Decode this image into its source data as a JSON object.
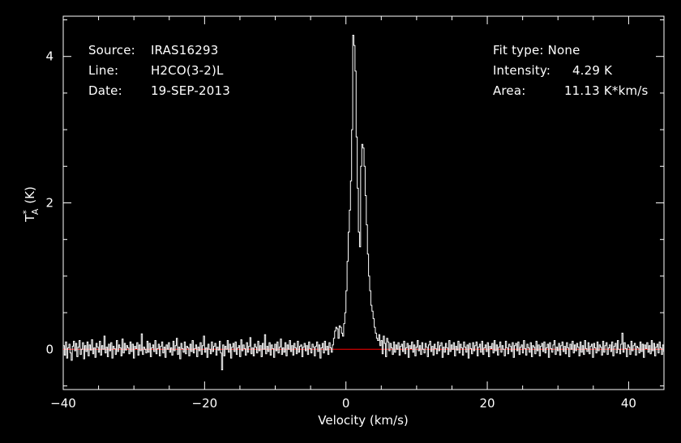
{
  "header": {
    "left": [
      {
        "label": "Source:",
        "value": "IRAS16293"
      },
      {
        "label": "Line:",
        "value": "H2CO(3-2)L"
      },
      {
        "label": "Date:",
        "value": "19-SEP-2013"
      }
    ],
    "right": [
      {
        "label": "Fit type:",
        "value": "None"
      },
      {
        "label": "Intensity:",
        "value": "4.29 K"
      },
      {
        "label": "Area:",
        "value": "11.13 K*km/s"
      }
    ]
  },
  "colors": {
    "background": "#000000",
    "spectrum": "#ffffff",
    "baseline": "#ff0000",
    "axes": "#ffffff"
  },
  "chart_data": {
    "type": "line",
    "step": true,
    "xlabel": "Velocity (km/s)",
    "ylabel": "T",
    "ylabel_sup": "*",
    "ylabel_sub": "A",
    "ylabel_unit": "(K)",
    "xlim": [
      -40,
      45
    ],
    "ylim": [
      -0.55,
      4.55
    ],
    "xticks": [
      -40,
      -20,
      0,
      20,
      40
    ],
    "yticks": [
      0,
      2,
      4
    ],
    "baseline": 0,
    "series": [
      {
        "x_start": -40,
        "x_step": 0.16,
        "y": [
          0.05,
          -0.08,
          0.1,
          -0.12,
          0.02,
          0.07,
          -0.05,
          -0.15,
          0.04,
          0.11,
          -0.02,
          0.08,
          -0.1,
          0.03,
          0.12,
          -0.07,
          0.0,
          0.09,
          -0.13,
          0.05,
          -0.03,
          0.1,
          -0.09,
          0.06,
          -0.01,
          0.13,
          -0.06,
          0.02,
          -0.11,
          0.08,
          0.03,
          -0.04,
          0.11,
          -0.08,
          0.05,
          0.0,
          0.18,
          -0.05,
          0.03,
          -0.1,
          0.07,
          -0.02,
          0.09,
          -0.12,
          0.04,
          0.01,
          -0.07,
          0.12,
          -0.03,
          0.06,
          0.02,
          -0.09,
          0.14,
          -0.05,
          0.08,
          -0.01,
          0.05,
          0.02,
          -0.06,
          0.1,
          -0.03,
          0.07,
          -0.12,
          0.04,
          0.01,
          0.09,
          -0.08,
          0.06,
          -0.02,
          0.21,
          -0.07,
          0.03,
          0.0,
          -0.05,
          0.11,
          -0.04,
          0.08,
          -0.1,
          0.02,
          0.06,
          -0.03,
          0.12,
          -0.06,
          0.01,
          0.07,
          -0.09,
          0.04,
          0.1,
          -0.05,
          0.03,
          -0.11,
          0.06,
          0.0,
          0.09,
          -0.04,
          0.02,
          -0.08,
          0.11,
          -0.02,
          0.05,
          0.15,
          -0.07,
          0.03,
          -0.13,
          0.08,
          0.01,
          -0.04,
          0.1,
          -0.06,
          0.04,
          0.02,
          -0.09,
          0.07,
          -0.03,
          0.12,
          -0.05,
          0.01,
          0.06,
          -0.1,
          0.03,
          -0.02,
          0.09,
          -0.07,
          0.05,
          0.18,
          -0.04,
          0.02,
          -0.11,
          0.07,
          0.0,
          -0.06,
          0.1,
          -0.03,
          0.04,
          0.08,
          -0.08,
          0.03,
          -0.01,
          0.11,
          -0.05,
          -0.28,
          0.06,
          -0.09,
          0.04,
          0.0,
          0.12,
          -0.04,
          0.07,
          -0.12,
          0.03,
          0.08,
          -0.03,
          0.1,
          -0.07,
          0.02,
          0.05,
          -0.1,
          0.13,
          -0.02,
          0.06,
          0.01,
          -0.08,
          0.09,
          -0.04,
          0.04,
          0.16,
          -0.06,
          0.02,
          -0.09,
          0.07,
          0.03,
          -0.05,
          0.11,
          -0.02,
          0.05,
          -0.1,
          0.08,
          0.0,
          0.2,
          -0.06,
          0.04,
          -0.03,
          0.09,
          -0.08,
          0.06,
          0.01,
          -0.11,
          0.07,
          -0.02,
          0.1,
          -0.05,
          0.03,
          0.14,
          -0.07,
          0.02,
          -0.04,
          0.09,
          -0.09,
          0.06,
          0.0,
          0.12,
          -0.03,
          0.05,
          -0.08,
          0.08,
          0.02,
          -0.06,
          0.11,
          -0.04,
          0.04,
          0.06,
          -0.1,
          0.03,
          0.08,
          -0.02,
          0.05,
          -0.07,
          0.1,
          0.01,
          -0.05,
          0.07,
          0.03,
          -0.09,
          0.04,
          0.1,
          -0.03,
          0.06,
          -0.12,
          0.02,
          0.08,
          -0.05,
          0.11,
          -0.01,
          0.04,
          -0.07,
          0.09,
          0.02,
          -0.04,
          0.06,
          0.15,
          0.25,
          0.3,
          0.28,
          0.15,
          0.32,
          0.3,
          0.22,
          0.18,
          0.35,
          0.5,
          0.8,
          1.2,
          1.6,
          1.9,
          2.3,
          3.0,
          4.29,
          4.15,
          3.8,
          2.9,
          2.2,
          1.6,
          1.4,
          2.5,
          2.8,
          2.75,
          2.5,
          2.1,
          1.7,
          1.3,
          1.0,
          0.8,
          0.6,
          0.52,
          0.42,
          0.3,
          0.22,
          0.15,
          0.12,
          0.2,
          0.05,
          0.12,
          -0.06,
          0.18,
          0.08,
          -0.1,
          0.15,
          0.1,
          -0.02,
          0.08,
          0.02,
          -0.07,
          0.1,
          -0.04,
          0.06,
          0.0,
          0.09,
          -0.08,
          0.04,
          0.07,
          -0.03,
          0.11,
          -0.06,
          0.02,
          0.08,
          -0.11,
          0.05,
          0.01,
          0.1,
          -0.04,
          0.06,
          -0.09,
          0.03,
          0.12,
          -0.02,
          0.05,
          -0.07,
          0.09,
          0.0,
          -0.05,
          0.08,
          0.03,
          -0.1,
          0.06,
          0.11,
          -0.03,
          0.04,
          -0.08,
          0.07,
          0.01,
          -0.06,
          0.1,
          -0.02,
          0.05,
          0.09,
          -0.11,
          0.03,
          -0.04,
          0.08,
          0.02,
          -0.07,
          0.12,
          -0.03,
          0.06,
          0.0,
          0.09,
          -0.09,
          0.04,
          -0.01,
          0.11,
          -0.05,
          0.07,
          0.02,
          -0.08,
          0.1,
          0.03,
          -0.04,
          0.06,
          -0.12,
          0.08,
          0.01,
          -0.06,
          0.09,
          -0.02,
          0.05,
          0.1,
          -0.09,
          0.03,
          0.07,
          -0.04,
          0.11,
          -0.07,
          0.02,
          0.06,
          -0.03,
          0.09,
          -0.1,
          0.04,
          0.01,
          0.08,
          -0.05,
          0.12,
          -0.02,
          0.06,
          -0.08,
          0.03,
          0.1,
          -0.04,
          0.05,
          0.0,
          -0.09,
          0.11,
          0.02,
          -0.06,
          0.07,
          0.04,
          -0.03,
          0.09,
          -0.11,
          0.05,
          0.08,
          -0.02,
          0.1,
          -0.07,
          0.03,
          0.06,
          -0.05,
          0.12,
          0.01,
          -0.08,
          0.07,
          0.02,
          -0.04,
          0.09,
          -0.1,
          0.05,
          0.03,
          -0.06,
          0.11,
          -0.02,
          0.06,
          -0.09,
          0.04,
          0.08,
          -0.03,
          0.1,
          -0.05,
          0.02,
          0.07,
          -0.11,
          0.09,
          0.01,
          -0.04,
          0.06,
          0.12,
          -0.07,
          0.03,
          -0.02,
          0.08,
          -0.08,
          0.05,
          0.1,
          -0.03,
          0.04,
          -0.06,
          0.09,
          0.02,
          -0.1,
          0.07,
          0.0,
          0.11,
          -0.05,
          0.06,
          -0.02,
          0.08,
          0.03,
          -0.09,
          0.1,
          -0.04,
          0.05,
          -0.07,
          0.12,
          0.01,
          -0.03,
          0.09,
          -0.06,
          0.04,
          0.07,
          -0.11,
          0.08,
          0.02,
          -0.05,
          0.1,
          -0.02,
          0.06,
          0.03,
          -0.08,
          0.11,
          -0.04,
          0.05,
          0.09,
          -0.07,
          0.02,
          0.06,
          -0.03,
          0.1,
          -0.09,
          0.04,
          0.08,
          -0.05,
          0.12,
          0.0,
          -0.06,
          0.07,
          0.22,
          -0.04,
          0.09,
          0.01,
          -0.1,
          0.06,
          0.03,
          -0.07,
          0.11,
          -0.02,
          0.05,
          0.08,
          -0.08,
          0.04,
          0.02,
          -0.05,
          0.1,
          -0.03,
          0.07,
          -0.11,
          0.06,
          0.01,
          0.09,
          -0.04,
          0.05,
          -0.06,
          0.12,
          -0.02,
          0.08,
          -0.09,
          0.03,
          0.07,
          -0.05,
          0.1,
          0.02,
          -0.07,
          0.06,
          -0.03,
          0.11,
          -0.04,
          0.15,
          -0.08
        ]
      }
    ]
  }
}
